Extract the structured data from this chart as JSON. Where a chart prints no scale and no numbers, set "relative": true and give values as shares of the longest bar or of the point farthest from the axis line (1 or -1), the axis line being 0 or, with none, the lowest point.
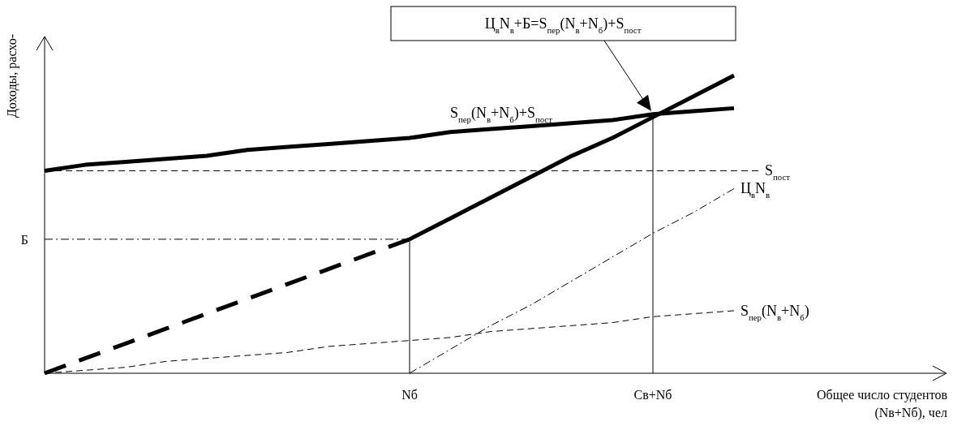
{
  "chart_data": {
    "type": "line",
    "relative": true,
    "ylabel": "Доходы, расхо-",
    "xlabel": "Общее число студентов\n(Nв+Nб), чел",
    "categories": [
      null,
      null,
      null,
      null,
      null,
      null,
      null,
      null,
      null,
      "Nб",
      null,
      null,
      null,
      null,
      null,
      "Св+Nб",
      null,
      null
    ],
    "series": [
      {
        "name": "S$_{пер}$(N$_{в}$+N$_{б}$)+S$_{пост}$",
        "color": "#000000",
        "line_style": "solid",
        "values": [
          0.68,
          0.7,
          0.71,
          0.72,
          0.73,
          0.75,
          0.76,
          0.77,
          0.78,
          0.79,
          0.81,
          0.82,
          0.83,
          0.84,
          0.85,
          0.87,
          0.88,
          0.89
        ]
      },
      {
        "color": "#000000",
        "line_style": "dashed",
        "values": [
          0,
          0.05,
          0.1,
          0.15,
          0.2,
          0.25,
          0.3,
          0.35,
          0.4,
          0.45,
          null,
          null,
          null,
          null,
          null,
          null,
          null,
          null
        ]
      },
      {
        "color": "#000000",
        "line_style": "solid",
        "values": [
          null,
          null,
          null,
          null,
          null,
          null,
          null,
          null,
          null,
          0.45,
          0.52,
          0.59,
          0.66,
          0.73,
          0.79,
          0.86,
          0.93,
          1
        ]
      },
      {
        "name": "Б",
        "color": "#000000",
        "line_style": "dashdot",
        "values": [
          0.45,
          0.45,
          0.45,
          0.45,
          0.45,
          0.45,
          0.45,
          0.45,
          0.45,
          0.45,
          null,
          null,
          null,
          null,
          null,
          null,
          null,
          null
        ]
      },
      {
        "name": "Ц$_{в}$N$_{в}$",
        "color": "#000000",
        "line_style": "dashdot",
        "values": [
          null,
          null,
          null,
          null,
          null,
          null,
          null,
          null,
          null,
          0,
          0.08,
          0.16,
          0.23,
          0.31,
          0.39,
          0.47,
          0.54,
          0.62
        ]
      },
      {
        "name": "S$_{пер}$(N$_{в}$+N$_{б}$)",
        "color": "#000000",
        "line_style": "dashed",
        "values": [
          0,
          0.01,
          0.02,
          0.04,
          0.05,
          0.06,
          0.07,
          0.09,
          0.1,
          0.11,
          0.12,
          0.14,
          0.15,
          0.16,
          0.17,
          0.19,
          0.2,
          0.21
        ]
      }
    ],
    "ref_lines": [
      {
        "axis": "y",
        "value": 0.68,
        "label": "S$_{пост}$",
        "line_style": "dashed"
      },
      {
        "axis": "x",
        "value": "Nб",
        "line_style": "solid"
      },
      {
        "axis": "x",
        "value": "Св+Nб",
        "line_style": "solid"
      }
    ],
    "annotations": [
      "Ц$_{в}$N$_{в}$+Б=S$_{пер}$(N$_{в}$+N$_{б}$)+S$_{пост}$"
    ],
    "legend": false
  }
}
